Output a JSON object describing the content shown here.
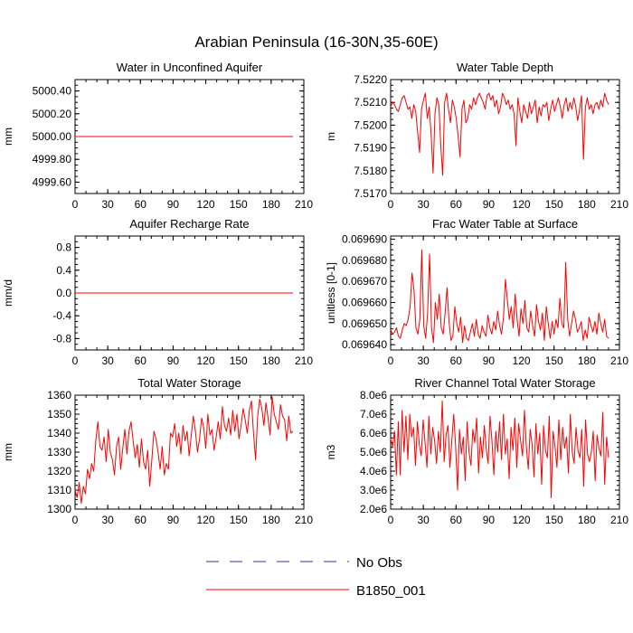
{
  "figure": {
    "title": "Arabian Peninsula (16-30N,35-60E)",
    "colors": {
      "model": "#ff0000",
      "obs": "#3333aa",
      "axis": "#000000"
    }
  },
  "legend": {
    "entries": [
      {
        "label": "No Obs",
        "style": "dashed",
        "color": "#3333aa"
      },
      {
        "label": "B1850_001",
        "style": "solid",
        "color": "#ff0000"
      }
    ]
  },
  "chart_data": [
    {
      "type": "line",
      "title": "Water in Unconfined Aquifer",
      "ylabel": "mm",
      "xlim": [
        0,
        210
      ],
      "xticks": [
        "0",
        "30",
        "60",
        "90",
        "120",
        "150",
        "180",
        "210"
      ],
      "ylim": [
        4999.5,
        5000.5
      ],
      "yticks": [
        "5000.40",
        "5000.20",
        "5000.00",
        "4999.80",
        "4999.60"
      ],
      "ytick_values": [
        5000.4,
        5000.2,
        5000.0,
        4999.8,
        4999.6
      ],
      "series": [
        {
          "name": "B1850_001",
          "x_start": 0,
          "x_end": 200,
          "values": [
            5000.0,
            5000.0
          ]
        }
      ]
    },
    {
      "type": "line",
      "title": "Water Table Depth",
      "ylabel": "m",
      "xlim": [
        0,
        210
      ],
      "xticks": [
        "0",
        "30",
        "60",
        "90",
        "120",
        "150",
        "180",
        "210"
      ],
      "ylim": [
        7.517,
        7.522
      ],
      "yticks": [
        "7.5220",
        "7.5210",
        "7.5200",
        "7.5190",
        "7.5180",
        "7.5170"
      ],
      "ytick_values": [
        7.522,
        7.521,
        7.52,
        7.519,
        7.518,
        7.517
      ],
      "series": [
        {
          "name": "B1850_001",
          "x_start": 0,
          "x_end": 200,
          "values": [
            7.5208,
            7.521,
            7.5209,
            7.5207,
            7.5206,
            7.5209,
            7.5212,
            7.5213,
            7.521,
            7.5207,
            7.5208,
            7.5203,
            7.5209,
            7.5206,
            7.5197,
            7.5188,
            7.5207,
            7.5211,
            7.5214,
            7.5203,
            7.5208,
            7.5196,
            7.5179,
            7.5205,
            7.5212,
            7.5209,
            7.5191,
            7.5178,
            7.521,
            7.5214,
            7.5207,
            7.5201,
            7.5211,
            7.5208,
            7.5203,
            7.5195,
            7.5186,
            7.5207,
            7.5211,
            7.5201,
            7.5203,
            7.5209,
            7.5207,
            7.5212,
            7.5209,
            7.5212,
            7.5214,
            7.5212,
            7.521,
            7.5207,
            7.5213,
            7.5214,
            7.5211,
            7.5213,
            7.5208,
            7.5211,
            7.5205,
            7.5208,
            7.5214,
            7.5212,
            7.5209,
            7.5211,
            7.5207,
            7.5209,
            7.5205,
            7.5191,
            7.5212,
            7.5206,
            7.5201,
            7.5209,
            7.5206,
            7.5203,
            7.521,
            7.5205,
            7.5208,
            7.5211,
            7.5201,
            7.5208,
            7.5204,
            7.5209,
            7.5208,
            7.521,
            7.5202,
            7.5207,
            7.5211,
            7.5206,
            7.5209,
            7.5212,
            7.5208,
            7.5203,
            7.5209,
            7.5212,
            7.5206,
            7.521,
            7.5207,
            7.5212,
            7.5208,
            7.5202,
            7.5207,
            7.5213,
            7.5185,
            7.5208,
            7.5212,
            7.5207,
            7.5209,
            7.5205,
            7.5209,
            7.521,
            7.5207,
            7.5211,
            7.5208,
            7.5214,
            7.5211,
            7.5209
          ]
        }
      ]
    },
    {
      "type": "line",
      "title": "Aquifer Recharge Rate",
      "ylabel": "mm/d",
      "xlim": [
        0,
        210
      ],
      "xticks": [
        "0",
        "30",
        "60",
        "90",
        "120",
        "150",
        "180",
        "210"
      ],
      "ylim": [
        -1.0,
        1.0
      ],
      "yticks": [
        "0.8",
        "0.4",
        "0.0",
        "-0.4",
        "-0.8"
      ],
      "ytick_values": [
        0.8,
        0.4,
        0.0,
        -0.4,
        -0.8
      ],
      "series": [
        {
          "name": "B1850_001",
          "x_start": 0,
          "x_end": 200,
          "values": [
            0.0,
            0.0
          ]
        }
      ]
    },
    {
      "type": "line",
      "title": "Frac Water Table at Surface",
      "ylabel": "unitless [0-1]",
      "xlim": [
        0,
        210
      ],
      "xticks": [
        "0",
        "30",
        "60",
        "90",
        "120",
        "150",
        "180",
        "210"
      ],
      "ylim": [
        0.0696375,
        0.0696915
      ],
      "yticks": [
        "0.069690",
        "0.069680",
        "0.069670",
        "0.069660",
        "0.069650",
        "0.069640"
      ],
      "ytick_values": [
        0.06969,
        0.06968,
        0.06967,
        0.06966,
        0.06965,
        0.06964
      ],
      "series": [
        {
          "name": "B1850_001",
          "x_start": 0,
          "x_end": 200,
          "values": [
            0.069647,
            0.069645,
            0.069646,
            0.069648,
            0.069644,
            0.069643,
            0.069647,
            0.06965,
            0.069649,
            0.069652,
            0.069658,
            0.069674,
            0.069666,
            0.069648,
            0.069645,
            0.069652,
            0.069685,
            0.069649,
            0.069643,
            0.069655,
            0.069683,
            0.069648,
            0.069641,
            0.06966,
            0.069652,
            0.069664,
            0.069648,
            0.069645,
            0.069655,
            0.069667,
            0.069651,
            0.069642,
            0.069644,
            0.069658,
            0.06965,
            0.069646,
            0.069653,
            0.069641,
            0.069649,
            0.069643,
            0.069642,
            0.069646,
            0.06965,
            0.069644,
            0.069652,
            0.069645,
            0.069643,
            0.069649,
            0.069646,
            0.069644,
            0.069654,
            0.069648,
            0.069645,
            0.069651,
            0.069647,
            0.069656,
            0.069649,
            0.069645,
            0.069653,
            0.069671,
            0.069661,
            0.069652,
            0.069658,
            0.069648,
            0.069664,
            0.069652,
            0.069644,
            0.069657,
            0.06965,
            0.069661,
            0.069648,
            0.069646,
            0.069656,
            0.069649,
            0.069644,
            0.069659,
            0.069651,
            0.069647,
            0.069655,
            0.069642,
            0.069658,
            0.06965,
            0.069643,
            0.069651,
            0.069645,
            0.069652,
            0.069648,
            0.069662,
            0.06965,
            0.069648,
            0.069679,
            0.069652,
            0.069644,
            0.06965,
            0.069656,
            0.069652,
            0.069646,
            0.069648,
            0.069651,
            0.069642,
            0.069647,
            0.069643,
            0.069653,
            0.069649,
            0.069646,
            0.069651,
            0.069645,
            0.069655,
            0.06965,
            0.069646,
            0.069652,
            0.069644,
            0.069643
          ]
        }
      ]
    },
    {
      "type": "line",
      "title": "Total Water Storage",
      "ylabel": "mm",
      "xlim": [
        0,
        210
      ],
      "xticks": [
        "0",
        "30",
        "60",
        "90",
        "120",
        "150",
        "180",
        "210"
      ],
      "ylim": [
        1300,
        1360
      ],
      "yticks": [
        "1360",
        "1350",
        "1340",
        "1330",
        "1320",
        "1310",
        "1300"
      ],
      "ytick_values": [
        1360,
        1350,
        1340,
        1330,
        1320,
        1310,
        1300
      ],
      "series": [
        {
          "name": "B1850_001",
          "x_start": 0,
          "x_end": 200,
          "values": [
            1310,
            1306,
            1314,
            1303,
            1312,
            1308,
            1321,
            1316,
            1324,
            1320,
            1336,
            1346,
            1333,
            1331,
            1338,
            1325,
            1342,
            1330,
            1326,
            1318,
            1333,
            1338,
            1321,
            1332,
            1342,
            1329,
            1341,
            1346,
            1336,
            1327,
            1334,
            1322,
            1337,
            1325,
            1321,
            1331,
            1312,
            1326,
            1341,
            1337,
            1330,
            1321,
            1333,
            1318,
            1324,
            1321,
            1340,
            1338,
            1345,
            1333,
            1340,
            1329,
            1344,
            1336,
            1341,
            1328,
            1339,
            1349,
            1341,
            1330,
            1337,
            1348,
            1343,
            1332,
            1350,
            1339,
            1342,
            1331,
            1338,
            1346,
            1337,
            1354,
            1344,
            1341,
            1348,
            1339,
            1352,
            1341,
            1350,
            1337,
            1344,
            1353,
            1347,
            1340,
            1352,
            1357,
            1340,
            1326,
            1349,
            1358,
            1353,
            1344,
            1356,
            1348,
            1339,
            1359,
            1350,
            1346,
            1342,
            1355,
            1349,
            1347,
            1336,
            1349,
            1340,
            1341
          ]
        }
      ]
    },
    {
      "type": "line",
      "title": "River Channel Total Water Storage",
      "ylabel": "m3",
      "xlim": [
        0,
        210
      ],
      "xticks": [
        "0",
        "30",
        "60",
        "90",
        "120",
        "150",
        "180",
        "210"
      ],
      "ylim": [
        2000000,
        8000000
      ],
      "yticks": [
        "8.0e6",
        "7.0e6",
        "6.0e6",
        "5.0e6",
        "4.0e6",
        "3.0e6",
        "2.0e6"
      ],
      "ytick_values": [
        8000000,
        7000000,
        6000000,
        5000000,
        4000000,
        3000000,
        2000000
      ],
      "series": [
        {
          "name": "B1850_001",
          "x_start": 0,
          "x_end": 200,
          "values": [
            5700000,
            5300000,
            6100000,
            3800000,
            6600000,
            3800000,
            7200000,
            5000000,
            6900000,
            4600000,
            7000000,
            5800000,
            6300000,
            4300000,
            6600000,
            5400000,
            4800000,
            6700000,
            5500000,
            4200000,
            6900000,
            4900000,
            6300000,
            5600000,
            4400000,
            6100000,
            5000000,
            7700000,
            4500000,
            5900000,
            6400000,
            4200000,
            5600000,
            7000000,
            5300000,
            3000000,
            6200000,
            4900000,
            5800000,
            3500000,
            6600000,
            5000000,
            4300000,
            6200000,
            5500000,
            6800000,
            3900000,
            5800000,
            4700000,
            6400000,
            5200000,
            4400000,
            6900000,
            5600000,
            3800000,
            6100000,
            5000000,
            6600000,
            4600000,
            7000000,
            4900000,
            5700000,
            3600000,
            6300000,
            5100000,
            6800000,
            4200000,
            6500000,
            5600000,
            4800000,
            7200000,
            5300000,
            4100000,
            6200000,
            5400000,
            3700000,
            6500000,
            4900000,
            6000000,
            3300000,
            6400000,
            5100000,
            4700000,
            6900000,
            2600000,
            6100000,
            5300000,
            4200000,
            6700000,
            4600000,
            6300000,
            5200000,
            5800000,
            3900000,
            7000000,
            5000000,
            4400000,
            6300000,
            5100000,
            4700000,
            6200000,
            3200000,
            6700000,
            4900000,
            4500000,
            5000000,
            6100000,
            3500000,
            5900000,
            5200000,
            4800000,
            7100000,
            3300000,
            5800000,
            4700000
          ]
        }
      ]
    }
  ]
}
